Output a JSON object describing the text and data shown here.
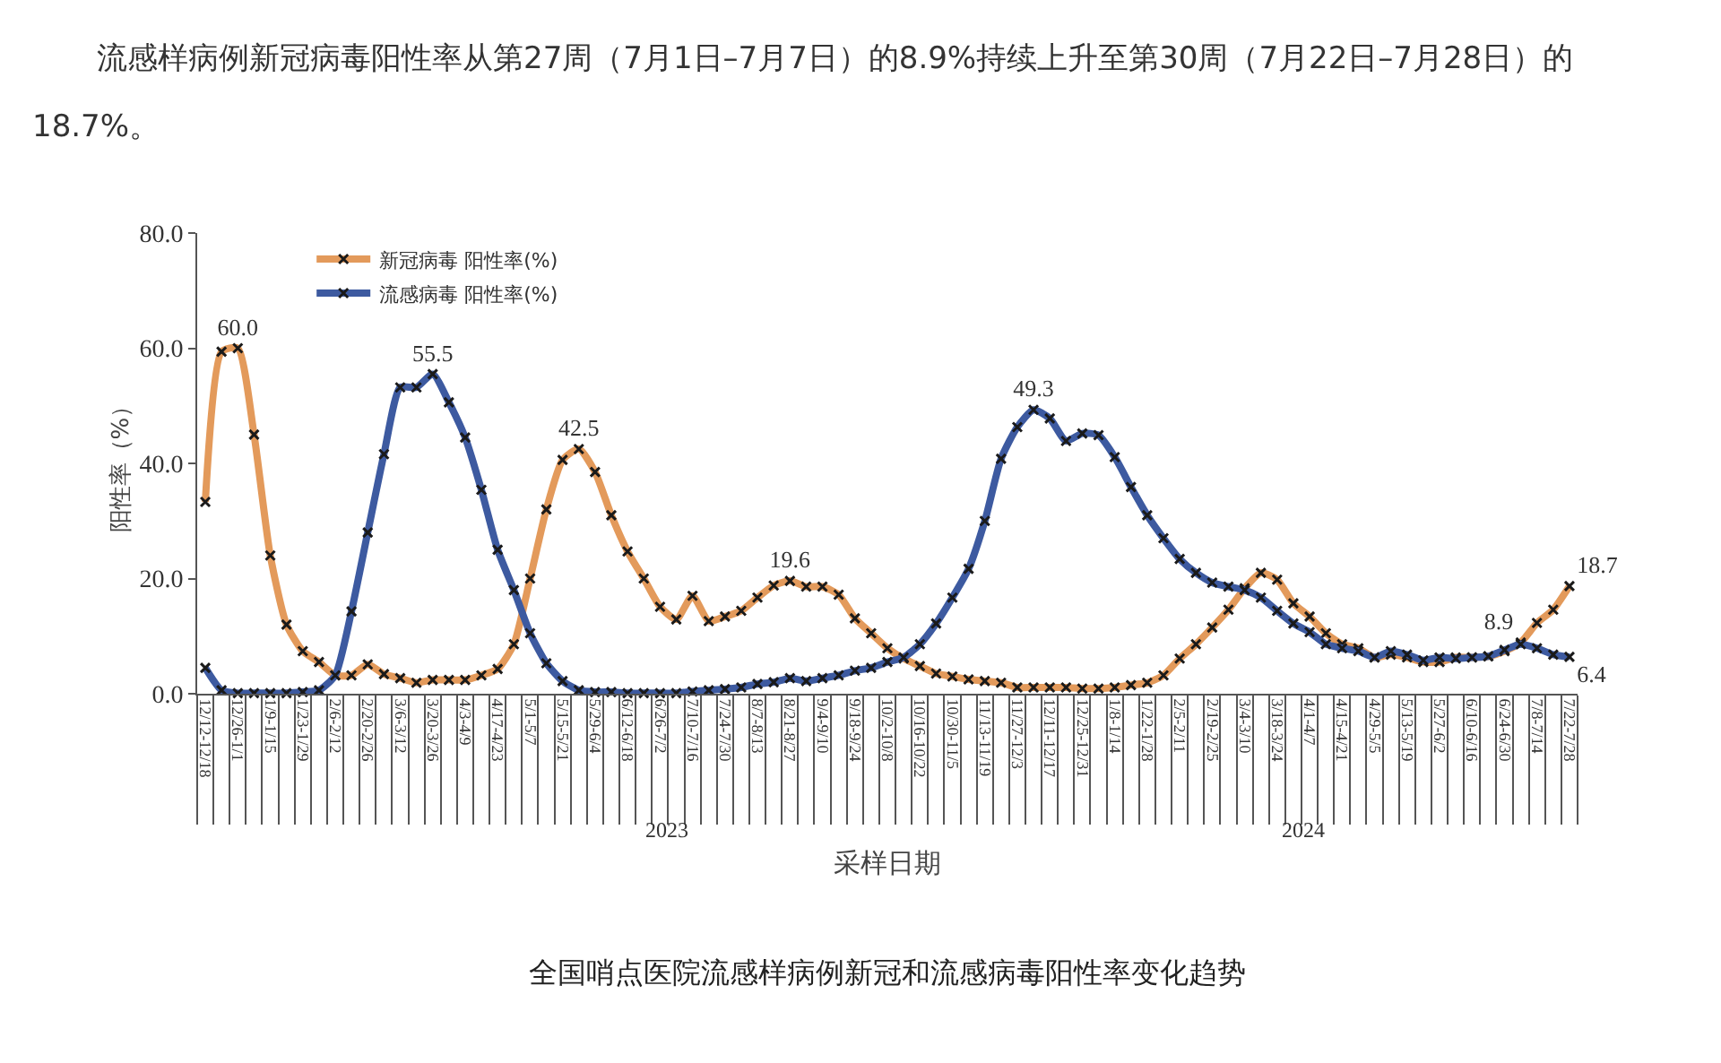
{
  "chart_data": {
    "type": "line",
    "title": "流感样病例新冠病毒阳性率从第27周（7月1日–7月7日）的8.9%持续上升至第30周（7月22日–7月28日）的18.7%。",
    "xlabel": "采样日期",
    "ylabel": "阳性率（%）",
    "annotations": [
      "2023",
      "2024",
      "全国哨点医院流感样病例新冠和流感病毒阳性率变化趋势"
    ],
    "categories": [
      "12/12-12/18",
      null,
      "12/26-1/1",
      null,
      "1/9-1/15",
      null,
      "1/23-1/29",
      null,
      "2/6-2/12",
      null,
      "2/20-2/26",
      null,
      "3/6-3/12",
      null,
      "3/20-3/26",
      null,
      "4/3-4/9",
      null,
      "4/17-4/23",
      null,
      "5/1-5/7",
      null,
      "5/15-5/21",
      null,
      "5/29-6/4",
      null,
      "6/12-6/18",
      null,
      "6/26-7/2",
      null,
      "7/10-7/16",
      null,
      "7/24-7/30",
      null,
      "8/7-8/13",
      null,
      "8/21-8/27",
      null,
      "9/4-9/10",
      null,
      "9/18-9/24",
      null,
      "10/2-10/8",
      null,
      "10/16-10/22",
      null,
      "10/30-11/5",
      null,
      "11/13-11/19",
      null,
      "11/27-12/3",
      null,
      "12/11-12/17",
      null,
      "12/25-12/31",
      null,
      "1/8-1/14",
      null,
      "1/22-1/28",
      null,
      "2/5-2/11",
      null,
      "2/19-2/25",
      null,
      "3/4-3/10",
      null,
      "3/18-3/24",
      null,
      "4/1-4/7",
      null,
      "4/15-4/21",
      null,
      "4/29-5/5",
      null,
      "5/13-5/19",
      null,
      "5/27-6/2",
      null,
      "6/10-6/16",
      null,
      "6/24-6/30",
      null,
      "7/8-7/14",
      null,
      "7/22-7/28"
    ],
    "series": [
      {
        "name": "新冠病毒 阳性率(%)",
        "color": "#e39a5b",
        "values": [
          33.3,
          59.4,
          60.0,
          45,
          24,
          12,
          7.4,
          5.5,
          3.2,
          3.2,
          5.1,
          3.4,
          2.7,
          1.9,
          2.4,
          2.4,
          2.4,
          3.2,
          4.3,
          8.6,
          20,
          32,
          40.6,
          42.5,
          38.5,
          31,
          24.7,
          20,
          15.1,
          12.9,
          17,
          12.6,
          13.4,
          14.4,
          16.7,
          18.8,
          19.6,
          18.6,
          18.6,
          17.2,
          13.1,
          10.5,
          7.9,
          6.1,
          4.8,
          3.5,
          3.0,
          2.5,
          2.2,
          1.9,
          1.1,
          1.1,
          1.1,
          1.1,
          0.9,
          0.9,
          1.1,
          1.5,
          1.9,
          3.2,
          6.1,
          8.6,
          11.5,
          14.6,
          18.3,
          21.0,
          19.8,
          15.7,
          13.4,
          10.5,
          8.6,
          7.9,
          6.3,
          6.8,
          6.3,
          5.5,
          5.5,
          6.3,
          6.3,
          6.5,
          7.4,
          8.9,
          12.3,
          14.6,
          18.7
        ],
        "value_labels": [
          null,
          null,
          "60.0",
          null,
          null,
          null,
          null,
          null,
          null,
          null,
          null,
          null,
          null,
          null,
          null,
          null,
          null,
          null,
          null,
          null,
          null,
          null,
          null,
          "42.5",
          null,
          null,
          null,
          null,
          null,
          null,
          null,
          null,
          null,
          null,
          null,
          null,
          "19.6",
          null,
          null,
          null,
          null,
          null,
          null,
          null,
          null,
          null,
          null,
          null,
          null,
          null,
          null,
          null,
          null,
          null,
          null,
          null,
          null,
          null,
          null,
          null,
          null,
          null,
          null,
          null,
          null,
          null,
          null,
          null,
          null,
          null,
          null,
          null,
          null,
          null,
          null,
          null,
          null,
          null,
          null,
          null,
          null,
          "8.9",
          null,
          null,
          "18.7"
        ]
      },
      {
        "name": "流感病毒 阳性率(%)",
        "color": "#3d5aa0",
        "values": [
          4.5,
          0.6,
          0.1,
          0.1,
          0.1,
          0.1,
          0.3,
          0.6,
          3.2,
          14.3,
          28,
          41.6,
          53.2,
          53.2,
          55.5,
          50.6,
          44.5,
          35.4,
          25,
          18,
          10.5,
          5.3,
          2.2,
          0.6,
          0.3,
          0.3,
          0.1,
          0.1,
          0.1,
          0.1,
          0.4,
          0.6,
          0.8,
          1.1,
          1.7,
          2.0,
          2.7,
          2.2,
          2.7,
          3.2,
          4.0,
          4.5,
          5.5,
          6.3,
          8.6,
          12.2,
          16.7,
          21.7,
          30,
          40.8,
          46.3,
          49.3,
          47.8,
          43.9,
          45.2,
          44.9,
          41.1,
          35.9,
          31,
          27,
          23.4,
          21,
          19.3,
          18.6,
          18,
          16.7,
          14.4,
          12.2,
          10.7,
          8.6,
          7.9,
          7.4,
          6.3,
          7.4,
          6.8,
          5.8,
          6.3,
          6.1,
          6.3,
          6.5,
          7.6,
          8.6,
          7.9,
          6.8,
          6.4
        ],
        "value_labels": [
          null,
          null,
          null,
          null,
          null,
          null,
          null,
          null,
          null,
          null,
          null,
          null,
          null,
          null,
          "55.5",
          null,
          null,
          null,
          null,
          null,
          null,
          null,
          null,
          null,
          null,
          null,
          null,
          null,
          null,
          null,
          null,
          null,
          null,
          null,
          null,
          null,
          null,
          null,
          null,
          null,
          null,
          null,
          null,
          null,
          null,
          null,
          null,
          null,
          null,
          null,
          null,
          "49.3",
          null,
          null,
          null,
          null,
          null,
          null,
          null,
          null,
          null,
          null,
          null,
          null,
          null,
          null,
          null,
          null,
          null,
          null,
          null,
          null,
          null,
          null,
          null,
          null,
          null,
          null,
          null,
          null,
          null,
          null,
          null,
          null,
          "6.4"
        ]
      }
    ],
    "ylim": [
      0,
      80
    ],
    "yticks": [
      {
        "value": 0,
        "label": "0.0"
      },
      {
        "value": 20,
        "label": "20.0"
      },
      {
        "value": 40,
        "label": "40.0"
      },
      {
        "value": 60,
        "label": "60.0"
      },
      {
        "value": 80,
        "label": "80.0"
      }
    ],
    "grid": false,
    "legend": "top left",
    "marker": "cross",
    "line_style": "solid"
  }
}
